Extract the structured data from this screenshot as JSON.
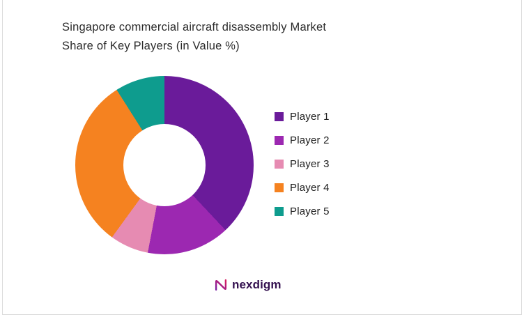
{
  "title_lines": {
    "line1": "Singapore commercial aircraft disassembly Market",
    "line2": "Share of Key Players (in Value %)"
  },
  "chart_data": {
    "type": "pie",
    "subtype": "donut",
    "title": "Singapore commercial aircraft disassembly Market Share of Key Players (in Value %)",
    "categories": [
      "Player 1",
      "Player 2",
      "Player 3",
      "Player 4",
      "Player 5"
    ],
    "values": [
      38,
      15,
      7,
      31,
      9
    ],
    "unit": "percent of value",
    "colors": [
      "#6A1B9A",
      "#9C28B1",
      "#E68BB2",
      "#F58220",
      "#0E9C8E"
    ],
    "start_angle_deg": 0,
    "direction": "clockwise",
    "donut_hole_ratio": 0.46,
    "legend_position": "right",
    "data_labels": "none"
  },
  "branding": {
    "logo_text": "nexdigm"
  }
}
